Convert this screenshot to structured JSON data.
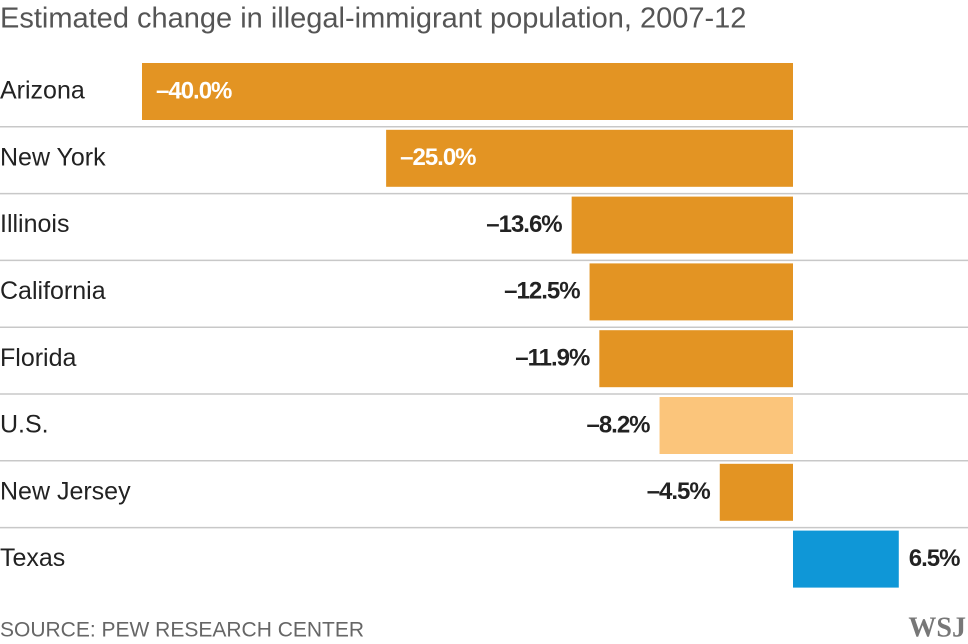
{
  "chart_data": {
    "type": "bar",
    "orientation": "horizontal",
    "title": "Estimated change in illegal-immigrant population, 2007-12",
    "categories": [
      "Arizona",
      "New York",
      "Illinois",
      "California",
      "Florida",
      "U.S.",
      "New Jersey",
      "Texas"
    ],
    "values": [
      -40.0,
      -25.0,
      -13.6,
      -12.5,
      -11.9,
      -8.2,
      -4.5,
      6.5
    ],
    "value_labels": [
      "–40.0%",
      "–25.0%",
      "–13.6%",
      "–12.5%",
      "–11.9%",
      "–8.2%",
      "–4.5%",
      "6.5%"
    ],
    "colors": [
      "#e39423",
      "#e39423",
      "#e39423",
      "#e39423",
      "#e39423",
      "#fbc57b",
      "#e39423",
      "#0f97d7"
    ],
    "source": "SOURCE: PEW RESEARCH CENTER",
    "logo": "WSJ"
  }
}
